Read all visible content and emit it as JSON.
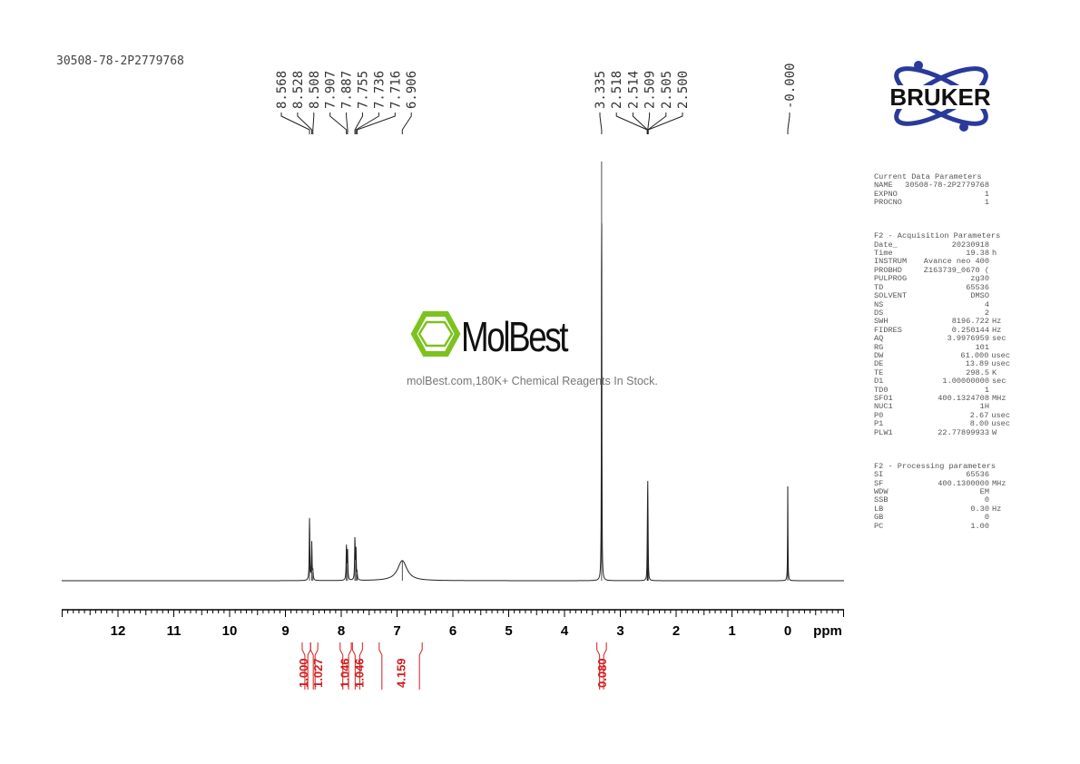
{
  "sample_name": "30508-78-2P2779768",
  "watermark": {
    "brand": "MolBest",
    "tagline": "molBest.com,180K+ Chemical Reagents In Stock.",
    "color": "#7dc21e"
  },
  "logo": {
    "text": "BRUKER",
    "color": "#2a3a9a"
  },
  "parameters": {
    "current": {
      "title": "Current Data Parameters",
      "rows": [
        [
          "NAME",
          "30508-78-2P2779768",
          ""
        ],
        [
          "EXPNO",
          "1",
          ""
        ],
        [
          "PROCNO",
          "1",
          ""
        ]
      ]
    },
    "acquisition": {
      "title": "F2 - Acquisition Parameters",
      "rows": [
        [
          "Date_",
          "20230918",
          ""
        ],
        [
          "Time",
          "19.38",
          "h"
        ],
        [
          "INSTRUM",
          "Avance neo 400",
          ""
        ],
        [
          "PROBHD",
          "Z163739_0670 (",
          ""
        ],
        [
          "PULPROG",
          "zg30",
          ""
        ],
        [
          "TD",
          "65536",
          ""
        ],
        [
          "SOLVENT",
          "DMSO",
          ""
        ],
        [
          "NS",
          "4",
          ""
        ],
        [
          "DS",
          "2",
          ""
        ],
        [
          "SWH",
          "8196.722",
          "Hz"
        ],
        [
          "FIDRES",
          "0.250144",
          "Hz"
        ],
        [
          "AQ",
          "3.9976959",
          "sec"
        ],
        [
          "RG",
          "101",
          ""
        ],
        [
          "DW",
          "61.000",
          "usec"
        ],
        [
          "DE",
          "13.89",
          "usec"
        ],
        [
          "TE",
          "298.5",
          "K"
        ],
        [
          "D1",
          "1.00000000",
          "sec"
        ],
        [
          "TD0",
          "1",
          ""
        ],
        [
          "SFO1",
          "400.1324708",
          "MHz"
        ],
        [
          "NUC1",
          "1H",
          ""
        ],
        [
          "P0",
          "2.67",
          "usec"
        ],
        [
          "P1",
          "8.00",
          "usec"
        ],
        [
          "PLW1",
          "22.77899933",
          "W"
        ]
      ]
    },
    "processing": {
      "title": "F2 - Processing parameters",
      "rows": [
        [
          "SI",
          "65536",
          ""
        ],
        [
          "SF",
          "400.1300000",
          "MHz"
        ],
        [
          "WDW",
          "EM",
          ""
        ],
        [
          "SSB",
          "0",
          ""
        ],
        [
          "LB",
          "0.30",
          "Hz"
        ],
        [
          "GB",
          "0",
          ""
        ],
        [
          "PC",
          "1.00",
          ""
        ]
      ]
    }
  },
  "chart_data": {
    "type": "line",
    "xlabel": "ppm",
    "xlim": [
      13.0,
      -1.0
    ],
    "x_reversed": true,
    "x_ticks": [
      "12",
      "11",
      "10",
      "9",
      "8",
      "7",
      "6",
      "5",
      "4",
      "3",
      "2",
      "1",
      "0"
    ],
    "peak_label_groups": [
      {
        "labels": [
          "8.568",
          "8.528",
          "8.508",
          "7.907",
          "7.887",
          "7.755",
          "7.736",
          "7.716",
          "6.906"
        ]
      },
      {
        "labels": [
          "3.335",
          "2.518",
          "2.514",
          "2.509",
          "2.505",
          "2.500"
        ]
      },
      {
        "labels": [
          "-0.000"
        ]
      }
    ],
    "peaks": [
      {
        "ppm": 8.568,
        "intensity": 15,
        "width": 0.006
      },
      {
        "ppm": 8.528,
        "intensity": 9,
        "width": 0.006
      },
      {
        "ppm": 8.508,
        "intensity": 2,
        "width": 0.006
      },
      {
        "ppm": 7.907,
        "intensity": 8,
        "width": 0.006
      },
      {
        "ppm": 7.887,
        "intensity": 7,
        "width": 0.006
      },
      {
        "ppm": 7.755,
        "intensity": 10,
        "width": 0.006
      },
      {
        "ppm": 7.736,
        "intensity": 7,
        "width": 0.006
      },
      {
        "ppm": 7.716,
        "intensity": 1.5,
        "width": 0.006
      },
      {
        "ppm": 6.906,
        "intensity": 4.8,
        "width": 0.1
      },
      {
        "ppm": 3.335,
        "intensity": 100,
        "width": 0.004
      },
      {
        "ppm": 2.518,
        "intensity": 3,
        "width": 0.004
      },
      {
        "ppm": 2.514,
        "intensity": 8,
        "width": 0.004
      },
      {
        "ppm": 2.509,
        "intensity": 16,
        "width": 0.004
      },
      {
        "ppm": 2.505,
        "intensity": 8,
        "width": 0.004
      },
      {
        "ppm": 2.5,
        "intensity": 3,
        "width": 0.004
      },
      {
        "ppm": 0.0,
        "intensity": 22.5,
        "width": 0.004
      }
    ],
    "integrals": [
      {
        "from": 8.7,
        "to": 8.55,
        "value": "1.000"
      },
      {
        "from": 8.55,
        "to": 8.42,
        "value": "1.027"
      },
      {
        "from": 8.02,
        "to": 7.82,
        "value": "1.046"
      },
      {
        "from": 7.8,
        "to": 7.62,
        "value": "1.046"
      },
      {
        "from": 7.32,
        "to": 6.55,
        "value": "4.159"
      },
      {
        "from": 3.42,
        "to": 3.25,
        "value": "0.080"
      }
    ],
    "colors": {
      "spectrum": "#222222",
      "integral": "#d21e1e"
    }
  }
}
